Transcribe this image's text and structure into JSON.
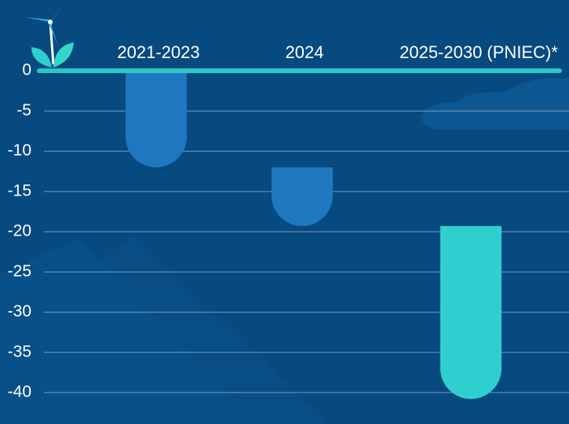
{
  "chart_data": {
    "type": "waterfall",
    "categories": [
      "2021-2023",
      "2024",
      "2025-2030 (PNIEC)*"
    ],
    "values": [
      -12,
      -7.3,
      -21.5
    ],
    "colors": [
      "#1f77c0",
      "#1f77c0",
      "#2fcfcf"
    ],
    "ylim": [
      -43.9,
      8.8
    ],
    "yticks": [
      0,
      -5,
      -10,
      -15,
      -20,
      -25,
      -30,
      -35,
      -40
    ],
    "grid": true
  }
}
